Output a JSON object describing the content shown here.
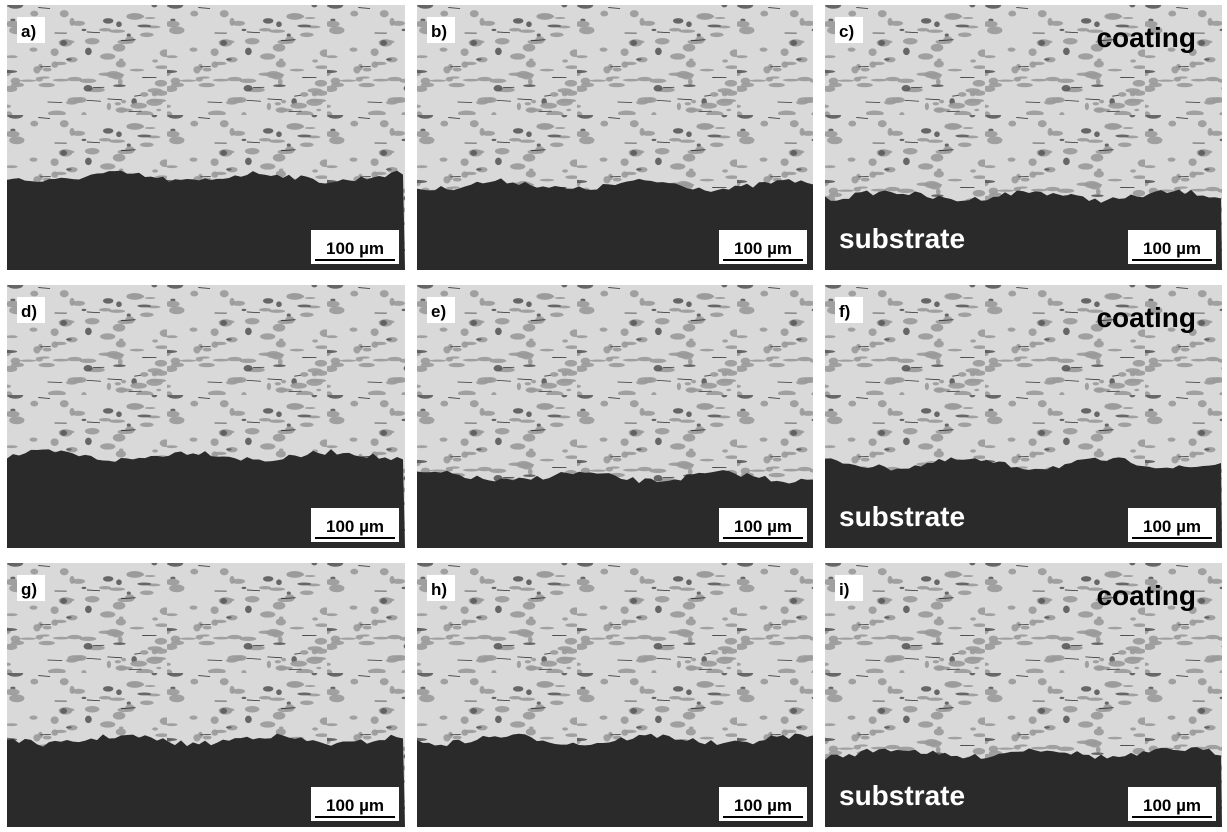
{
  "panels": [
    {
      "label": "a)",
      "scale_bar": "100 µm"
    },
    {
      "label": "b)",
      "scale_bar": "100 µm"
    },
    {
      "label": "c)",
      "scale_bar": "100 µm",
      "coating": "coating",
      "substrate": "substrate"
    },
    {
      "label": "d)",
      "scale_bar": "100 µm"
    },
    {
      "label": "e)",
      "scale_bar": "100 µm"
    },
    {
      "label": "f)",
      "scale_bar": "100 µm",
      "coating": "coating",
      "substrate": "substrate"
    },
    {
      "label": "g)",
      "scale_bar": "100 µm"
    },
    {
      "label": "h)",
      "scale_bar": "100 µm"
    },
    {
      "label": "i)",
      "scale_bar": "100 µm",
      "coating": "coating",
      "substrate": "substrate"
    }
  ]
}
